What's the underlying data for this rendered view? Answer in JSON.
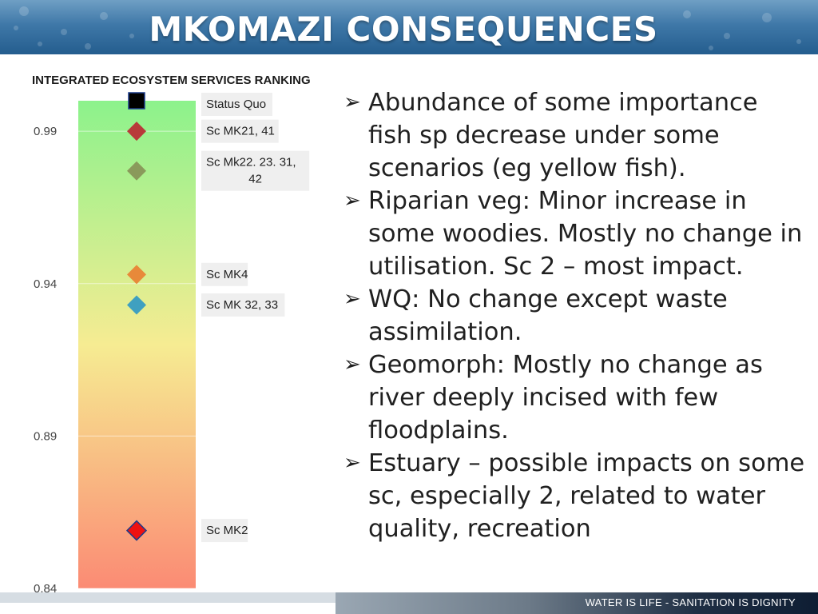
{
  "slide": {
    "title": "MKOMAZI CONSEQUENCES",
    "footer": "WATER IS LIFE - SANITATION IS DIGNITY"
  },
  "chart_data": {
    "type": "scatter",
    "title": "INTEGRATED ECOSYSTEM SERVICES RANKING",
    "ylim": [
      0.84,
      1.0
    ],
    "yticks": [
      0.99,
      0.94,
      0.89,
      0.84
    ],
    "background": "vertical gradient green (top) → yellow → red (bottom)",
    "grid": false,
    "points": [
      {
        "label": "Status Quo",
        "y": 1.0,
        "marker": "square",
        "color": "#000000"
      },
      {
        "label": "Sc MK21, 41",
        "y": 0.99,
        "marker": "diamond",
        "color": "#b83a3a"
      },
      {
        "label": "Sc Mk22. 23. 31, 42",
        "y": 0.977,
        "marker": "diamond",
        "color": "#8a9a5b"
      },
      {
        "label": "Sc MK4",
        "y": 0.943,
        "marker": "diamond",
        "color": "#e8893a"
      },
      {
        "label": "Sc MK 32, 33",
        "y": 0.933,
        "marker": "diamond",
        "color": "#3fa0c0"
      },
      {
        "label": "Sc MK2",
        "y": 0.859,
        "marker": "diamond",
        "color": "#ee1111"
      }
    ]
  },
  "bullets": [
    "Abundance of some importance fish sp decrease under some scenarios (eg yellow fish).",
    "Riparian veg: Minor increase in some woodies. Mostly no change in utilisation.  Sc 2 – most impact.",
    "WQ: No change except waste assimilation.",
    "Geomorph:  Mostly no change as river deeply incised with few floodplains.",
    "Estuary – possible impacts on some sc, especially 2, related to water quality, recreation"
  ]
}
